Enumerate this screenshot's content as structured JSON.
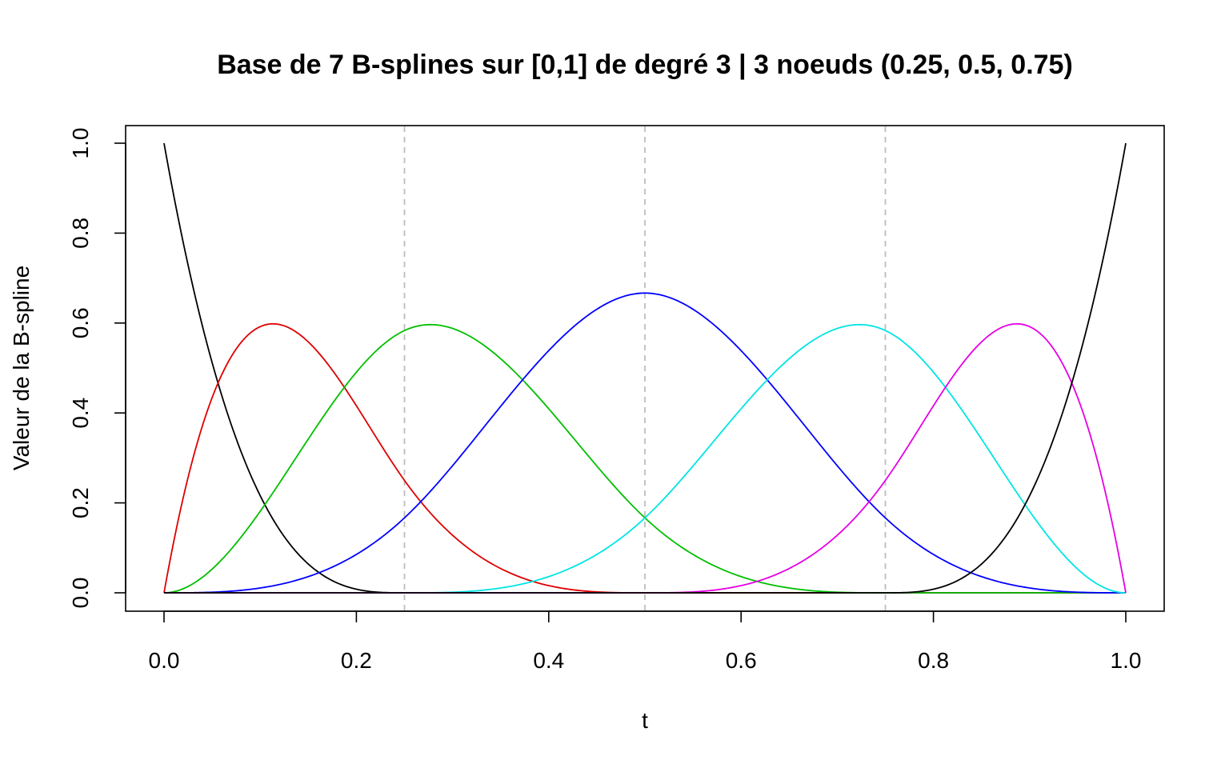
{
  "chart_data": {
    "type": "line",
    "title": "Base de 7 B-splines sur [0,1] de degré 3 | 3 noeuds (0.25, 0.5, 0.75)",
    "xlabel": "t",
    "ylabel": "Valeur de la B-spline",
    "xlim": [
      0,
      1
    ],
    "ylim": [
      0,
      1
    ],
    "x_ticks": [
      "0.0",
      "0.2",
      "0.4",
      "0.6",
      "0.8",
      "1.0"
    ],
    "y_ticks": [
      "0.0",
      "0.2",
      "0.4",
      "0.6",
      "0.8",
      "1.0"
    ],
    "degree": 3,
    "interior_knots": [
      0.25,
      0.5,
      0.75
    ],
    "grid": false,
    "series": [
      {
        "color": "#000000"
      },
      {
        "color": "#DF0000"
      },
      {
        "color": "#00BF00"
      },
      {
        "color": "#0000FF"
      },
      {
        "color": "#00E5E5"
      },
      {
        "color": "#E600E6"
      },
      {
        "color": "#000000"
      }
    ]
  }
}
